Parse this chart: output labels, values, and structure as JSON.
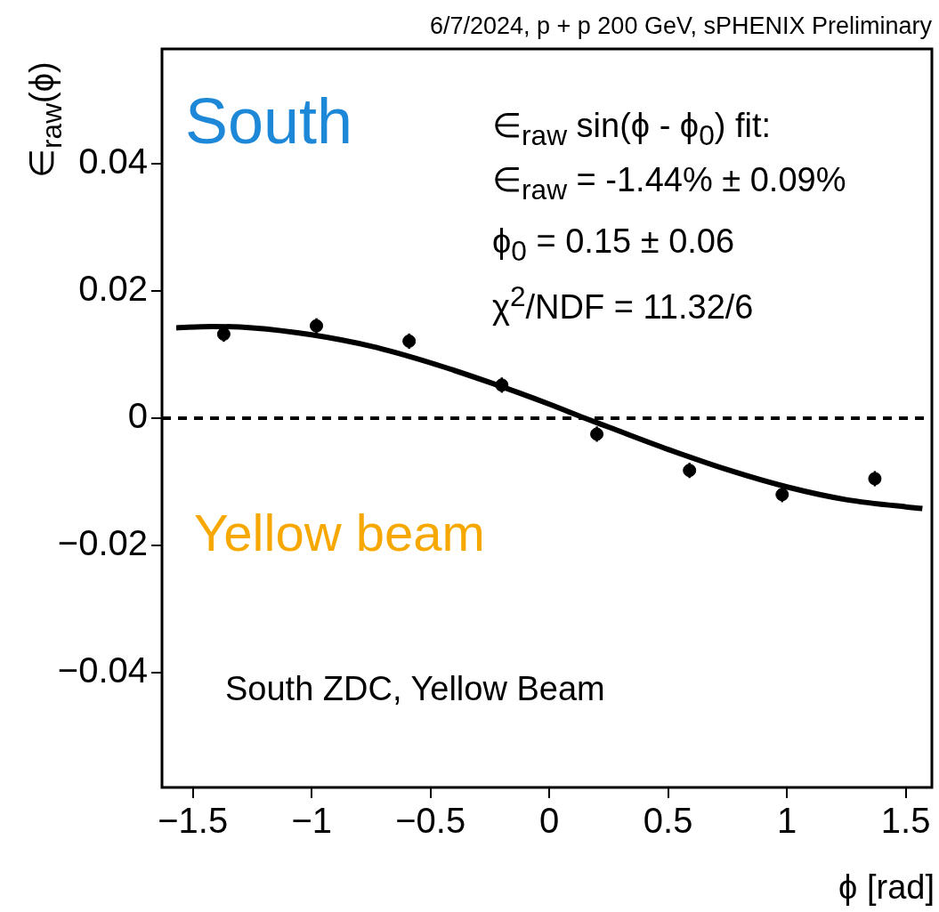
{
  "chart_data": {
    "type": "scatter",
    "title": "6/7/2024, p + p 200 GeV, sPHENIX Preliminary",
    "xlabel": "ϕ [rad]",
    "ylabel": "∈$_{raw}$(ϕ)",
    "xlim": [
      -1.63,
      1.61
    ],
    "ylim": [
      -0.058,
      0.058
    ],
    "xticks": [
      {
        "value": -1.5,
        "label": "−1.5"
      },
      {
        "value": -1,
        "label": "−1"
      },
      {
        "value": -0.5,
        "label": "−0.5"
      },
      0,
      0.5,
      1,
      1.5
    ],
    "yticks": [
      {
        "value": -0.04,
        "label": "−0.04"
      },
      {
        "value": -0.02,
        "label": "−0.02"
      },
      0,
      0.02,
      0.04
    ],
    "grid": false,
    "legend": false,
    "series": [
      {
        "color": "#000000",
        "marker": "circle",
        "x": [
          -1.37,
          -0.98,
          -0.59,
          -0.2,
          0.2,
          0.59,
          0.98,
          1.37
        ],
        "values": [
          0.0132,
          0.0145,
          0.0121,
          0.0052,
          -0.0025,
          -0.0082,
          -0.012,
          -0.0095
        ],
        "errors": [
          0.0012,
          0.0012,
          0.0012,
          0.0012,
          0.0012,
          0.0012,
          0.0012,
          0.0012
        ]
      },
      {
        "type": "line",
        "color": "#000000",
        "marker": "none",
        "line_style": "solid",
        "x": [
          -1.57,
          -1.42,
          -1.25,
          -1,
          -0.75,
          -0.5,
          -0.25,
          0,
          0.15,
          0.25,
          0.5,
          0.75,
          1,
          1.25,
          1.57
        ],
        "values": [
          0.0142,
          0.0144,
          0.0142,
          0.0131,
          0.0113,
          0.0087,
          0.0056,
          0.0022,
          0,
          -0.0014,
          -0.0049,
          -0.0081,
          -0.0108,
          -0.0128,
          -0.0142
        ]
      }
    ],
    "ref_lines": [
      {
        "axis": "y",
        "value": 0,
        "line_style": "dashed",
        "color": "#000000"
      }
    ],
    "annotations": [
      "South",
      "Yellow beam",
      "South ZDC, Yellow Beam",
      "∈$_{raw}$ sin(ϕ - ϕ$_{0}$) fit:",
      "∈$_{raw}$ = -1.44% ± 0.09%",
      "ϕ$_{0}$ = 0.15 ± 0.06",
      "χ$^{2}$/NDF = 11.32/6"
    ]
  }
}
